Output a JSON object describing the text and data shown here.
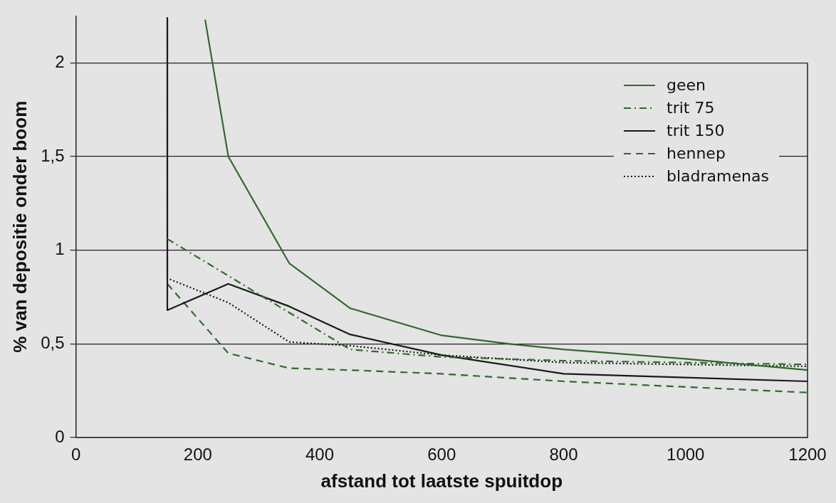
{
  "chart_data": {
    "type": "line",
    "xlabel": "afstand tot laatste spuitdop",
    "ylabel": "% van depositie onder boom",
    "xlim": [
      0,
      1200
    ],
    "xticks": [
      0,
      200,
      400,
      600,
      800,
      1000,
      1200
    ],
    "ylim": [
      0,
      2.25
    ],
    "yticks": [
      0,
      {
        "value": 0.5,
        "label": "0,5"
      },
      1,
      {
        "value": 1.5,
        "label": "1,5"
      },
      2
    ],
    "grid": "y",
    "legend": "top right",
    "marker": "none",
    "series": [
      {
        "name": "geen",
        "color": "#2f6b2a",
        "line_style": "solid",
        "x": [
          212,
          250,
          350,
          450,
          600,
          711,
          800,
          1000,
          1200
        ],
        "values": [
          2.23,
          1.5,
          0.93,
          0.69,
          0.545,
          0.5,
          0.47,
          0.42,
          0.36
        ]
      },
      {
        "name": "trit 75",
        "color": "#2f6b2a",
        "line_style": "dashdot",
        "x": [
          150,
          450,
          600,
          800,
          1200
        ],
        "values": [
          1.06,
          0.47,
          0.43,
          0.41,
          0.39
        ]
      },
      {
        "name": "trit 150",
        "color": "#1a1a1a",
        "line_style": "solid",
        "x": [
          150,
          150,
          250,
          350,
          450,
          600,
          800,
          1200
        ],
        "values": [
          2.24,
          0.68,
          0.82,
          0.7,
          0.55,
          0.44,
          0.34,
          0.3
        ]
      },
      {
        "name": "hennep",
        "color": "#2f6b2a",
        "line_style": "dashed",
        "x": [
          150,
          250,
          350,
          450,
          600,
          800,
          1200
        ],
        "values": [
          0.82,
          0.45,
          0.37,
          0.36,
          0.34,
          0.3,
          0.24
        ]
      },
      {
        "name": "bladramenas",
        "color": "#1a1a1a",
        "line_style": "dotted",
        "x": [
          150,
          150,
          250,
          350,
          450,
          600,
          800,
          1200
        ],
        "values": [
          2.24,
          0.85,
          0.72,
          0.51,
          0.49,
          0.44,
          0.4,
          0.38
        ]
      }
    ]
  }
}
